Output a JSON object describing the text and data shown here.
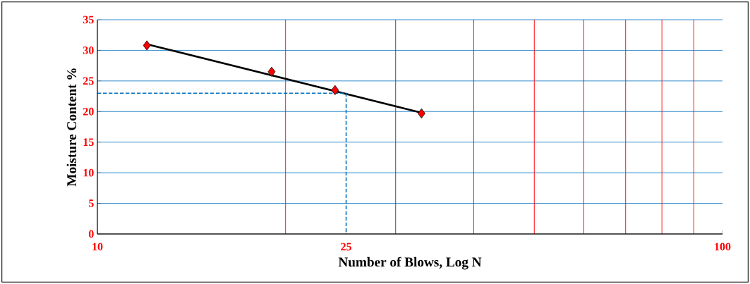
{
  "chart_data": {
    "type": "scatter",
    "xlabel": "Number of Blows, Log N",
    "ylabel": "Moisture Content %",
    "log": "x",
    "xlim": [
      10,
      100
    ],
    "ylim": [
      0,
      35
    ],
    "xticks": [
      10,
      25,
      100
    ],
    "yticks": [
      0,
      5,
      10,
      15,
      20,
      25,
      30,
      35
    ],
    "grid": "y",
    "marker": "diamond",
    "ref_lines": [
      {
        "axis": "x",
        "value": 20,
        "color": "#ff0000"
      },
      {
        "axis": "x",
        "value": 30,
        "color": "#404040"
      },
      {
        "axis": "x",
        "value": 40,
        "color": "#ff0000"
      },
      {
        "axis": "x",
        "value": 50,
        "color": "#ff0000"
      },
      {
        "axis": "x",
        "value": 60,
        "color": "#ff0000"
      },
      {
        "axis": "x",
        "value": 70,
        "color": "#ff0000"
      },
      {
        "axis": "x",
        "value": 80,
        "color": "#ff0000"
      },
      {
        "axis": "x",
        "value": 90,
        "color": "#ff0000"
      }
    ],
    "series": [
      {
        "type": "line",
        "color": "#000000",
        "marker": "none",
        "x": [
          12,
          33
        ],
        "values": [
          31.0,
          19.8
        ]
      },
      {
        "type": "line",
        "color": "#0070c0",
        "marker": "none",
        "line_style": "dashed",
        "x": [
          10,
          25,
          25
        ],
        "values": [
          23.0,
          23.0,
          0
        ]
      },
      {
        "color": "#ff0000",
        "x": [
          12,
          19,
          24,
          33
        ],
        "values": [
          30.8,
          26.5,
          23.5,
          19.7
        ]
      }
    ]
  }
}
